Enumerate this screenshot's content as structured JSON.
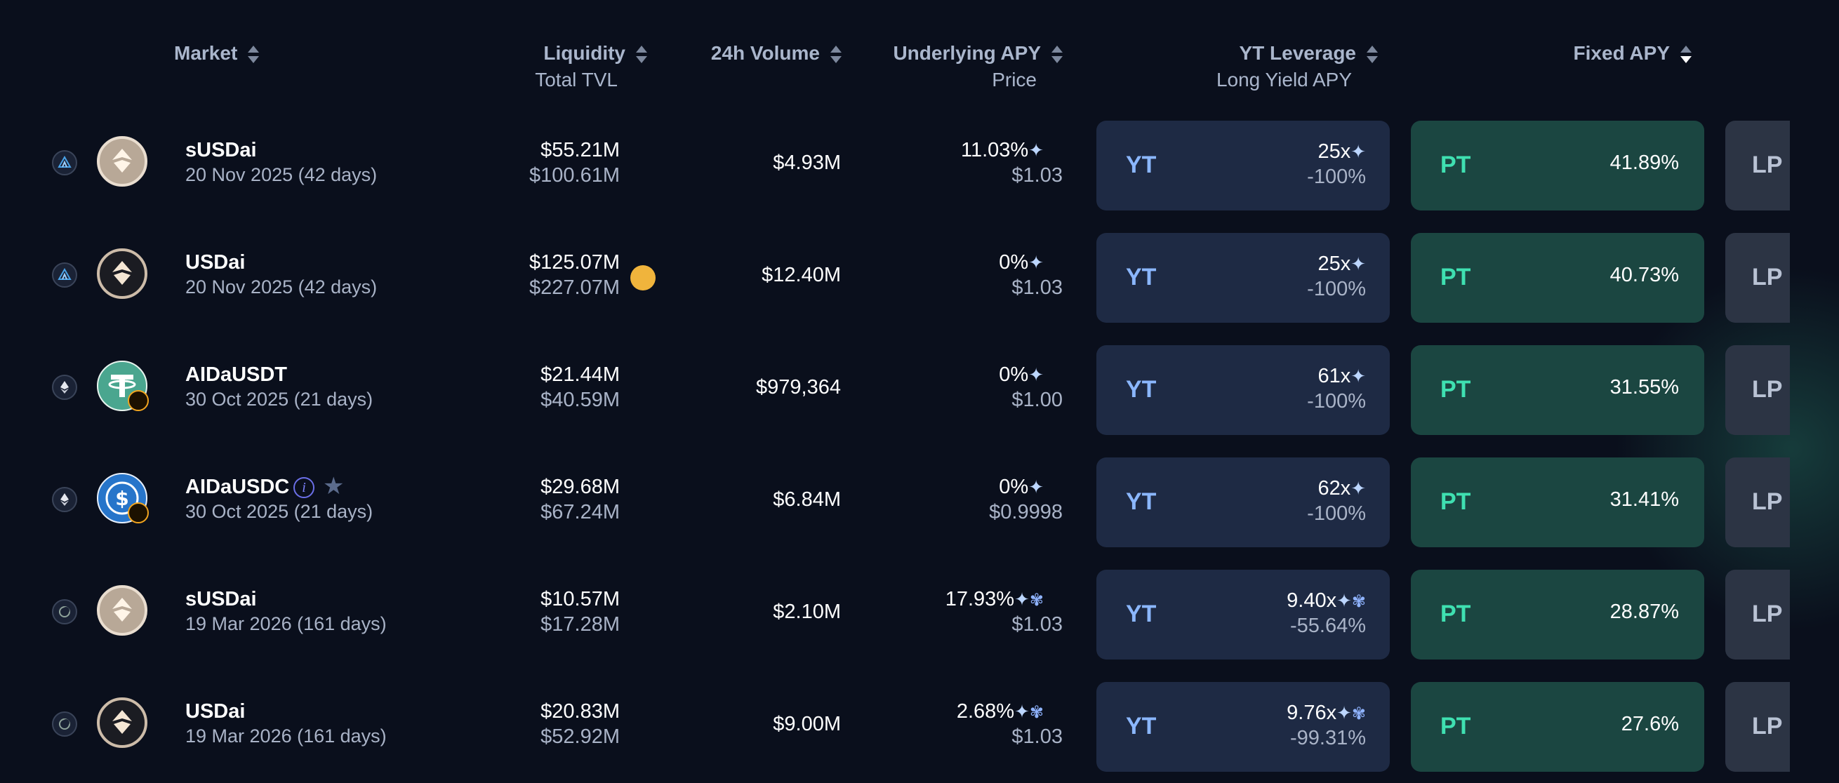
{
  "headers": {
    "market": "Market",
    "liquidity": "Liquidity",
    "liquidity_sub": "Total TVL",
    "volume": "24h Volume",
    "underlying": "Underlying APY",
    "underlying_sub": "Price",
    "yt_leverage": "YT Leverage",
    "yt_leverage_sub": "Long Yield APY",
    "fixed_apy": "Fixed APY"
  },
  "labels": {
    "yt": "YT",
    "pt": "PT",
    "lp": "LP"
  },
  "icons": {
    "sparkle": "✦",
    "info": "i",
    "star": "★"
  },
  "colors": {
    "background": "#0a0f1c",
    "yt_card": "#1e2a44",
    "pt_card": "#1b4641",
    "lp_card": "#2c3444",
    "pt_text": "#3fe0b1",
    "yt_text": "#8bb7ff"
  },
  "rows": [
    {
      "name": "sUSDai",
      "date": "20 Nov 2025 (42 days)",
      "chain_icon": "arbitrum-icon",
      "token_icon": "usdai-icon",
      "liquidity": "$55.21M",
      "tvl": "$100.61M",
      "volume": "$4.93M",
      "underlying_apy": "11.03%",
      "price": "$1.03",
      "yt_leverage": "25x",
      "long_yield_apy": "-100%",
      "fixed_apy": "41.89%"
    },
    {
      "name": "USDai",
      "date": "20 Nov 2025 (42 days)",
      "chain_icon": "arbitrum-icon",
      "token_icon": "usdai-icon",
      "liquidity": "$125.07M",
      "tvl": "$227.07M",
      "volume": "$12.40M",
      "underlying_apy": "0%",
      "price": "$1.03",
      "yt_leverage": "25x",
      "long_yield_apy": "-100%",
      "fixed_apy": "40.73%"
    },
    {
      "name": "AIDaUSDT",
      "date": "30 Oct 2025 (21 days)",
      "chain_icon": "ethereum-icon",
      "token_icon": "tether-icon",
      "liquidity": "$21.44M",
      "tvl": "$40.59M",
      "volume": "$979,364",
      "underlying_apy": "0%",
      "price": "$1.00",
      "yt_leverage": "61x",
      "long_yield_apy": "-100%",
      "fixed_apy": "31.55%"
    },
    {
      "name": "AIDaUSDC",
      "date": "30 Oct 2025 (21 days)",
      "chain_icon": "ethereum-icon",
      "token_icon": "usdc-icon",
      "liquidity": "$29.68M",
      "tvl": "$67.24M",
      "volume": "$6.84M",
      "underlying_apy": "0%",
      "price": "$0.9998",
      "yt_leverage": "62x",
      "long_yield_apy": "-100%",
      "fixed_apy": "31.41%"
    },
    {
      "name": "sUSDai",
      "date": "19 Mar 2026 (161 days)",
      "chain_icon": "plasma-icon",
      "token_icon": "usdai-icon",
      "liquidity": "$10.57M",
      "tvl": "$17.28M",
      "volume": "$2.10M",
      "underlying_apy": "17.93%",
      "price": "$1.03",
      "yt_leverage": "9.40x",
      "long_yield_apy": "-55.64%",
      "fixed_apy": "28.87%"
    },
    {
      "name": "USDai",
      "date": "19 Mar 2026 (161 days)",
      "chain_icon": "plasma-icon",
      "token_icon": "usdai-icon",
      "liquidity": "$20.83M",
      "tvl": "$52.92M",
      "volume": "$9.00M",
      "underlying_apy": "2.68%",
      "price": "$1.03",
      "yt_leverage": "9.76x",
      "long_yield_apy": "-99.31%",
      "fixed_apy": "27.6%"
    }
  ]
}
